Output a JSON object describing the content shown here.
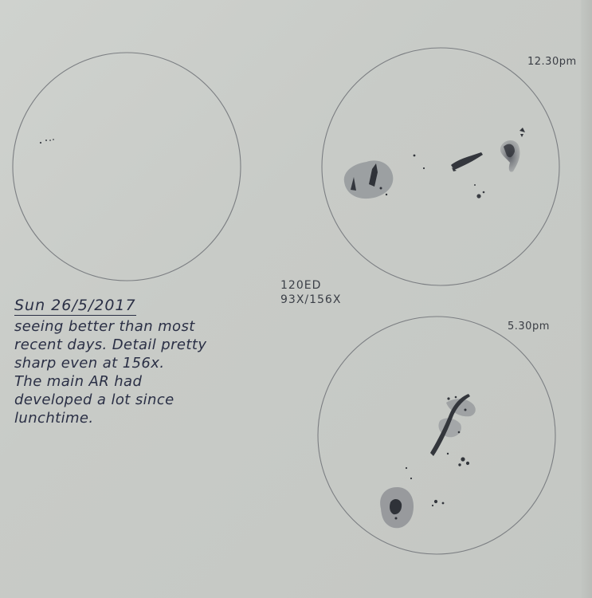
{
  "sketch": {
    "time_top": "12.30pm",
    "time_bottom": "5.30pm",
    "telescope": "120ED",
    "magnification": "93X/156X",
    "notes": {
      "date": "Sun 26/5/2017",
      "lines": [
        "seeing better than most",
        "recent days. Detail pretty",
        "sharp even at 156x.",
        "The main AR had",
        "developed a lot since",
        "lunchtime."
      ]
    }
  }
}
